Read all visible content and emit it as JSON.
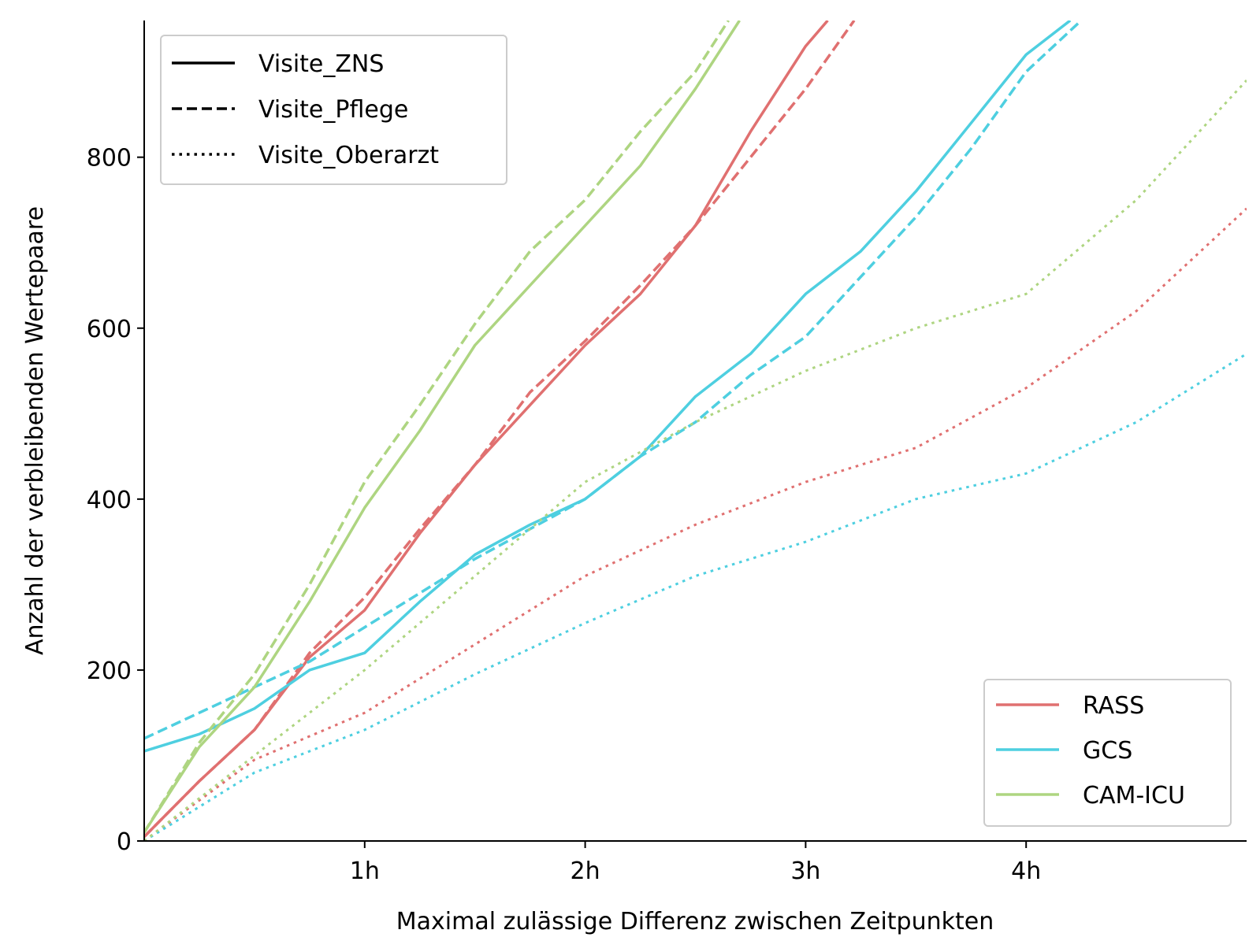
{
  "chart_data": {
    "type": "line",
    "title": "",
    "xlabel": "Maximal zulässige Differenz zwischen Zeitpunkten",
    "ylabel": "Anzahl der verbleibenden Wertepaare",
    "x_unit": "hours",
    "xlim": [
      0,
      5
    ],
    "ylim": [
      0,
      960
    ],
    "x_ticks": [
      {
        "value": 1,
        "label": "1h"
      },
      {
        "value": 2,
        "label": "2h"
      },
      {
        "value": 3,
        "label": "3h"
      },
      {
        "value": 4,
        "label": "4h"
      }
    ],
    "y_ticks": [
      {
        "value": 0,
        "label": "0"
      },
      {
        "value": 200,
        "label": "200"
      },
      {
        "value": 400,
        "label": "400"
      },
      {
        "value": 600,
        "label": "600"
      },
      {
        "value": 800,
        "label": "800"
      }
    ],
    "grid": false,
    "style_legend": {
      "placement": "top-left",
      "entries": [
        {
          "label": "Visite_ZNS",
          "dash": "solid"
        },
        {
          "label": "Visite_Pflege",
          "dash": "dashed"
        },
        {
          "label": "Visite_Oberarzt",
          "dash": "dotted"
        }
      ]
    },
    "color_legend": {
      "placement": "bottom-right",
      "entries": [
        {
          "label": "RASS",
          "color": "#e07070"
        },
        {
          "label": "GCS",
          "color": "#4ecfe0"
        },
        {
          "label": "CAM-ICU",
          "color": "#aed581"
        }
      ]
    },
    "series": [
      {
        "score": "RASS",
        "visit": "Visite_ZNS",
        "color": "#e07070",
        "dash": "solid",
        "x": [
          0,
          0.25,
          0.5,
          0.75,
          1.0,
          1.25,
          1.5,
          1.75,
          2.0,
          2.25,
          2.5,
          2.75,
          3.0,
          3.1
        ],
        "y": [
          5,
          70,
          130,
          215,
          270,
          360,
          440,
          510,
          580,
          640,
          720,
          830,
          930,
          960
        ]
      },
      {
        "score": "RASS",
        "visit": "Visite_Pflege",
        "color": "#e07070",
        "dash": "dashed",
        "x": [
          0,
          0.25,
          0.5,
          0.75,
          1.0,
          1.25,
          1.5,
          1.75,
          2.0,
          2.25,
          2.5,
          2.75,
          3.0,
          3.22
        ],
        "y": [
          5,
          70,
          130,
          220,
          285,
          365,
          440,
          525,
          585,
          650,
          720,
          800,
          880,
          960
        ]
      },
      {
        "score": "RASS",
        "visit": "Visite_Oberarzt",
        "color": "#e07070",
        "dash": "dotted",
        "x": [
          0,
          0.5,
          1.0,
          1.5,
          2.0,
          2.5,
          3.0,
          3.5,
          4.0,
          4.5,
          5.0
        ],
        "y": [
          0,
          95,
          150,
          230,
          310,
          370,
          420,
          460,
          530,
          620,
          740
        ]
      },
      {
        "score": "GCS",
        "visit": "Visite_ZNS",
        "color": "#4ecfe0",
        "dash": "solid",
        "x": [
          0,
          0.25,
          0.5,
          0.75,
          1.0,
          1.25,
          1.5,
          1.75,
          2.0,
          2.25,
          2.5,
          2.75,
          3.0,
          3.25,
          3.5,
          3.75,
          4.0,
          4.2
        ],
        "y": [
          105,
          125,
          155,
          200,
          220,
          280,
          335,
          370,
          400,
          450,
          520,
          570,
          640,
          690,
          760,
          840,
          920,
          960
        ]
      },
      {
        "score": "GCS",
        "visit": "Visite_Pflege",
        "color": "#4ecfe0",
        "dash": "dashed",
        "x": [
          0,
          0.25,
          0.5,
          0.75,
          1.0,
          1.25,
          1.5,
          1.75,
          2.0,
          2.25,
          2.5,
          2.75,
          3.0,
          3.25,
          3.5,
          3.75,
          4.0,
          4.25
        ],
        "y": [
          120,
          150,
          180,
          210,
          250,
          290,
          330,
          365,
          400,
          450,
          490,
          545,
          590,
          660,
          730,
          810,
          900,
          960
        ]
      },
      {
        "score": "GCS",
        "visit": "Visite_Oberarzt",
        "color": "#4ecfe0",
        "dash": "dotted",
        "x": [
          0,
          0.5,
          1.0,
          1.5,
          2.0,
          2.5,
          3.0,
          3.5,
          4.0,
          4.5,
          5.0
        ],
        "y": [
          0,
          80,
          130,
          195,
          255,
          310,
          350,
          400,
          430,
          490,
          570
        ]
      },
      {
        "score": "CAM-ICU",
        "visit": "Visite_ZNS",
        "color": "#aed581",
        "dash": "solid",
        "x": [
          0,
          0.25,
          0.5,
          0.75,
          1.0,
          1.25,
          1.5,
          1.75,
          2.0,
          2.25,
          2.5,
          2.7
        ],
        "y": [
          10,
          110,
          180,
          280,
          390,
          480,
          580,
          650,
          720,
          790,
          880,
          960
        ]
      },
      {
        "score": "CAM-ICU",
        "visit": "Visite_Pflege",
        "color": "#aed581",
        "dash": "dashed",
        "x": [
          0,
          0.25,
          0.5,
          0.75,
          1.0,
          1.25,
          1.5,
          1.75,
          2.0,
          2.25,
          2.5,
          2.65
        ],
        "y": [
          10,
          115,
          195,
          300,
          420,
          510,
          605,
          690,
          750,
          830,
          900,
          960
        ]
      },
      {
        "score": "CAM-ICU",
        "visit": "Visite_Oberarzt",
        "color": "#aed581",
        "dash": "dotted",
        "x": [
          0,
          0.5,
          1.0,
          1.5,
          2.0,
          2.5,
          3.0,
          3.5,
          4.0,
          4.5,
          5.0
        ],
        "y": [
          0,
          100,
          200,
          310,
          420,
          490,
          550,
          600,
          640,
          750,
          890
        ]
      }
    ]
  }
}
